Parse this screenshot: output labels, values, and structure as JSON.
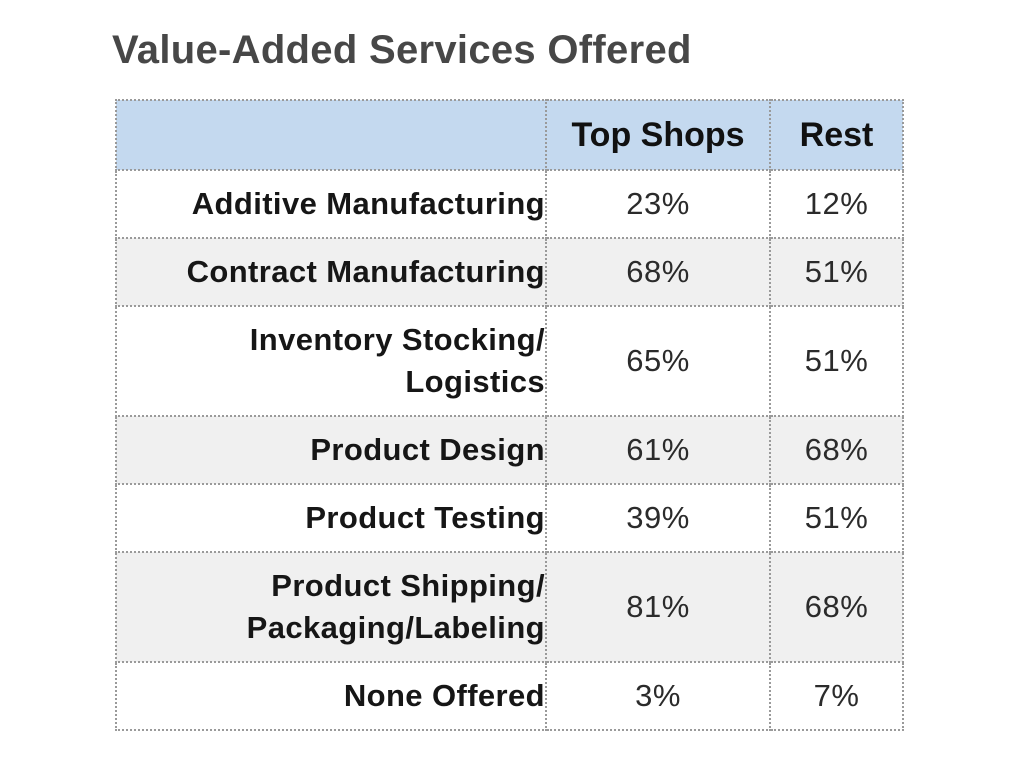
{
  "chart_data": {
    "type": "table",
    "title": "Value-Added Services Offered",
    "columns": [
      "",
      "Top Shops",
      "Rest"
    ],
    "rows": [
      {
        "label": [
          "Additive Manufacturing"
        ],
        "top_shops": "23%",
        "rest": "12%"
      },
      {
        "label": [
          "Contract Manufacturing"
        ],
        "top_shops": "68%",
        "rest": "51%"
      },
      {
        "label": [
          "Inventory Stocking/",
          "Logistics"
        ],
        "top_shops": "65%",
        "rest": "51%"
      },
      {
        "label": [
          "Product Design"
        ],
        "top_shops": "61%",
        "rest": "68%"
      },
      {
        "label": [
          "Product Testing"
        ],
        "top_shops": "39%",
        "rest": "51%"
      },
      {
        "label": [
          "Product Shipping/",
          "Packaging/Labeling"
        ],
        "top_shops": "81%",
        "rest": "68%"
      },
      {
        "label": [
          "None Offered"
        ],
        "top_shops": "3%",
        "rest": "7%"
      }
    ],
    "series": [
      {
        "name": "Top Shops",
        "values": [
          23,
          68,
          65,
          61,
          39,
          81,
          3
        ]
      },
      {
        "name": "Rest",
        "values": [
          12,
          51,
          51,
          68,
          51,
          68,
          7
        ]
      }
    ],
    "colors": {
      "header_bg": "#c4d9ef",
      "stripe_bg": "#f0f0f0",
      "title_color": "#474747",
      "border": "#9a9a9a"
    }
  }
}
